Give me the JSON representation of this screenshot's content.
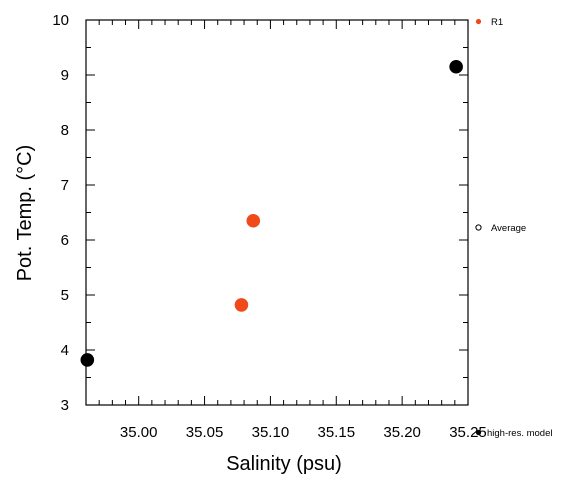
{
  "chart_data": {
    "type": "scatter",
    "xlabel": "Salinity (psu)",
    "ylabel": "Pot. Temp. (°C)",
    "xlim": [
      34.96,
      35.25
    ],
    "ylim": [
      3,
      10
    ],
    "xticks": [
      "35.00",
      "35.05",
      "35.10",
      "35.15",
      "35.20",
      "35.25"
    ],
    "yticks": [
      "3",
      "4",
      "5",
      "6",
      "7",
      "8",
      "9",
      "10"
    ],
    "grid": false,
    "legend_position": "right",
    "series": [
      {
        "name": "R1",
        "color": "#f04a1a",
        "points": [
          {
            "x": 35.078,
            "y": 4.82
          },
          {
            "x": 35.087,
            "y": 6.35
          }
        ]
      },
      {
        "name": "",
        "color": "#000000",
        "points": [
          {
            "x": 34.961,
            "y": 3.82
          },
          {
            "x": 35.241,
            "y": 9.15
          }
        ]
      }
    ],
    "legend": [
      {
        "label": "R1",
        "marker": "filled-circle",
        "color": "#f04a1a"
      },
      {
        "label": "Average",
        "marker": "open-circle",
        "color": "#000000"
      },
      {
        "label": "high-res. model",
        "marker": "filled-circle",
        "color": "#000000"
      }
    ]
  }
}
